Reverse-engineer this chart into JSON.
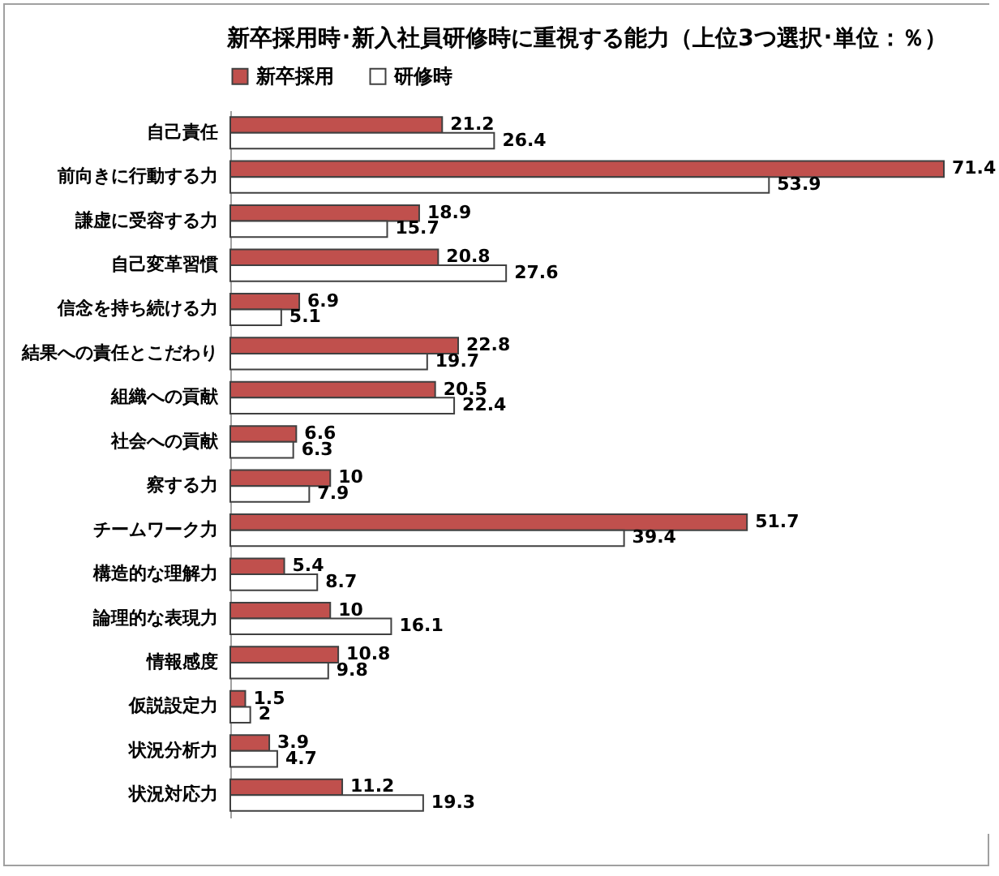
{
  "chart_data": {
    "type": "bar",
    "orientation": "horizontal",
    "title": "新卒採用時･新入社員研修時に重視する能力（上位3つ選択･単位：％）",
    "categories": [
      "自己責任",
      "前向きに行動する力",
      "謙虚に受容する力",
      "自己変革習慣",
      "信念を持ち続ける力",
      "結果への責任とこだわり",
      "組織への貢献",
      "社会への貢献",
      "察する力",
      "チームワーク力",
      "構造的な理解力",
      "論理的な表現力",
      "情報感度",
      "仮説設定力",
      "状況分析力",
      "状況対応力"
    ],
    "series": [
      {
        "name": "新卒採用",
        "color": "#c0504d",
        "values": [
          21.2,
          71.4,
          18.9,
          20.8,
          6.9,
          22.8,
          20.5,
          6.6,
          10,
          51.7,
          5.4,
          10,
          10.8,
          1.5,
          3.9,
          11.2
        ]
      },
      {
        "name": "研修時",
        "color": "#ffffff",
        "values": [
          26.4,
          53.9,
          15.7,
          27.6,
          5.1,
          19.7,
          22.4,
          6.3,
          7.9,
          39.4,
          8.7,
          16.1,
          9.8,
          2,
          4.7,
          19.3
        ]
      }
    ],
    "data_labels": true,
    "legend": "top",
    "grid": false
  }
}
